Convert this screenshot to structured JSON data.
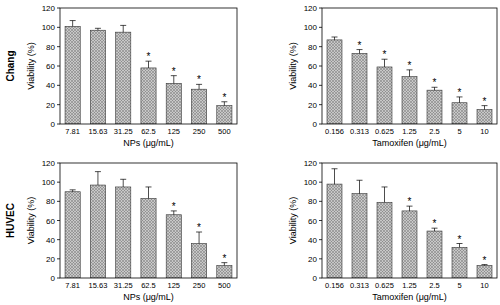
{
  "chart_data": [
    {
      "type": "bar",
      "title": "Chang",
      "x_label": "NPs (μg/mL)",
      "y_label": "Viability (%)",
      "categories": [
        "7.81",
        "15.63",
        "31.25",
        "62.5",
        "125",
        "250",
        "500"
      ],
      "values": [
        101,
        97,
        95,
        58,
        42,
        36,
        19
      ],
      "errors": [
        6,
        2,
        7,
        7,
        8,
        5,
        4
      ],
      "significance": [
        null,
        null,
        null,
        "*",
        "*",
        "*",
        "*"
      ],
      "color": "#c8c8c8",
      "ylim": [
        0,
        120
      ],
      "yticks": [
        0,
        20,
        40,
        60,
        80,
        100,
        120
      ]
    },
    {
      "type": "bar",
      "x_label": "Tamoxifen (μg/mL)",
      "y_label": "Viability (%)",
      "categories": [
        "0.156",
        "0.313",
        "0.625",
        "1.25",
        "2.5",
        "5",
        "10"
      ],
      "values": [
        87,
        73,
        59,
        49,
        35,
        22,
        15
      ],
      "errors": [
        3,
        4,
        8,
        7,
        3,
        6,
        4
      ],
      "significance": [
        null,
        "*",
        "*",
        "*",
        "*",
        "*",
        "*"
      ],
      "color": "#c8c8c8",
      "ylim": [
        0,
        120
      ],
      "yticks": [
        0,
        20,
        40,
        60,
        80,
        100,
        120
      ]
    },
    {
      "type": "bar",
      "title": "HUVEC",
      "x_label": "NPs (μg/mL)",
      "y_label": "Viability (%)",
      "categories": [
        "7.81",
        "15.63",
        "31.25",
        "62.5",
        "125",
        "250",
        "500"
      ],
      "values": [
        90,
        97,
        95,
        83,
        66,
        36,
        13
      ],
      "errors": [
        2,
        14,
        8,
        12,
        4,
        12,
        3
      ],
      "significance": [
        null,
        null,
        null,
        null,
        "*",
        "*",
        "*"
      ],
      "color": "#c8c8c8",
      "ylim": [
        0,
        120
      ],
      "yticks": [
        0,
        20,
        40,
        60,
        80,
        100,
        120
      ]
    },
    {
      "type": "bar",
      "x_label": "Tamoxifen (μg/mL)",
      "y_label": "Viability (%)",
      "categories": [
        "0.156",
        "0.313",
        "0.625",
        "1.25",
        "2.5",
        "5",
        "10"
      ],
      "values": [
        98,
        88,
        79,
        70,
        49,
        32,
        13
      ],
      "errors": [
        16,
        14,
        16,
        5,
        3,
        4,
        1
      ],
      "significance": [
        null,
        null,
        null,
        "*",
        "*",
        "*",
        "*"
      ],
      "color": "#c8c8c8",
      "ylim": [
        0,
        120
      ],
      "yticks": [
        0,
        20,
        40,
        60,
        80,
        100,
        120
      ]
    }
  ]
}
